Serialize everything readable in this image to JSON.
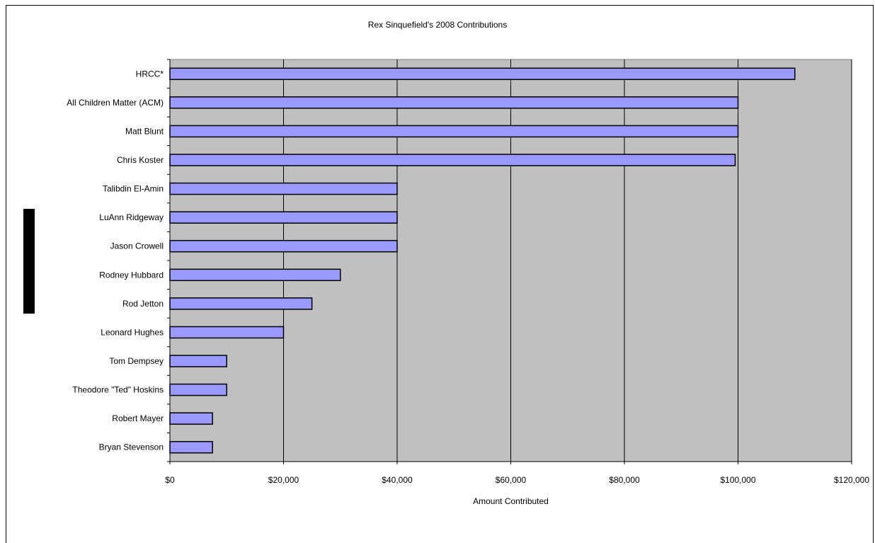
{
  "chart_data": {
    "type": "bar",
    "orientation": "horizontal",
    "title": "Rex Sinquefield's 2008 Contributions",
    "xlabel": "Amount Contributed",
    "ylabel": "",
    "xlim": [
      0,
      120000
    ],
    "xticks": [
      0,
      20000,
      40000,
      60000,
      80000,
      100000,
      120000
    ],
    "xtick_labels": [
      "$0",
      "$20,000",
      "$40,000",
      "$60,000",
      "$80,000",
      "$100,000",
      "$120,000"
    ],
    "categories": [
      "HRCC*",
      "All Children Matter (ACM)",
      "Matt Blunt",
      "Chris Koster",
      "Talibdin El-Amin",
      "LuAnn Ridgeway",
      "Jason Crowell",
      "Rodney Hubbard",
      "Rod Jetton",
      "Leonard Hughes",
      "Tom Dempsey",
      "Theodore \"Ted\" Hoskins",
      "Robert Mayer",
      "Bryan Stevenson"
    ],
    "values": [
      110000,
      100000,
      100000,
      99500,
      40000,
      40000,
      40000,
      30000,
      25000,
      20000,
      10000,
      10000,
      7500,
      7500
    ],
    "grid": true,
    "legend": "none",
    "colors": {
      "bar": "#9999ff",
      "plot_bg": "#c0c0c0",
      "bar_edge": "#000000"
    }
  }
}
